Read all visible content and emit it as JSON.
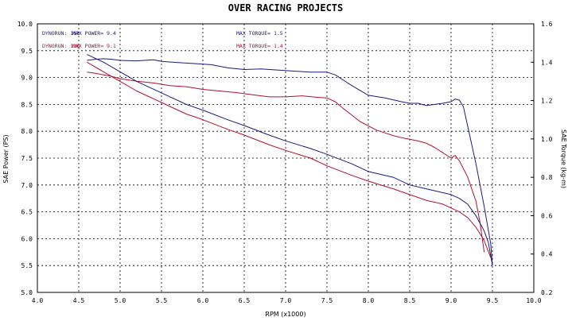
{
  "chart_data": {
    "type": "line",
    "title": "OVER RACING PROJECTS",
    "xlabel": "RPM (x1000)",
    "ylabel_left": "SAE Power (PS)",
    "ylabel_right": "SAE Torque (kg-m)",
    "xlim": [
      4.0,
      10.0
    ],
    "ylim_left": [
      5.0,
      10.0
    ],
    "ylim_right": [
      0.2,
      1.6
    ],
    "x_ticks": [
      "4.0",
      "4.5",
      "5.0",
      "5.5",
      "6.0",
      "6.5",
      "7.0",
      "7.5",
      "8.0",
      "8.5",
      "9.0",
      "9.5",
      "10.0"
    ],
    "y_ticks_left": [
      "5.0",
      "5.5",
      "6.0",
      "6.5",
      "7.0",
      "7.5",
      "8.0",
      "8.5",
      "9.0",
      "9.5",
      "10.0"
    ],
    "y_ticks_right": [
      "0.2",
      "0.4",
      "0.6",
      "0.8",
      "1.0",
      "1.2",
      "1.4",
      "1.6"
    ],
    "grid": true,
    "legend": [
      {
        "run": "DYNORUN: 161",
        "power": "MAX POWER= 9.4",
        "torque": "MAX TORQUE= 1.5",
        "color": "#1a1a80"
      },
      {
        "run": "DYNORUN: 126",
        "power": "MAX POWER= 9.1",
        "torque": "MAX TORQUE= 1.4",
        "color": "#b01030"
      }
    ],
    "series": [
      {
        "name": "DYNORUN: 161",
        "kind": "power",
        "axis": "left",
        "color": "#1a1a80",
        "x": [
          4.6,
          4.7,
          4.8,
          4.9,
          5.0,
          5.2,
          5.4,
          5.5,
          5.7,
          5.9,
          6.1,
          6.3,
          6.5,
          6.7,
          6.9,
          7.1,
          7.3,
          7.5,
          7.6,
          7.7,
          7.8,
          8.0,
          8.2,
          8.4,
          8.5,
          8.6,
          8.7,
          8.8,
          8.9,
          9.0,
          9.05,
          9.1,
          9.15,
          9.2,
          9.3,
          9.4,
          9.48,
          9.5
        ],
        "y": [
          9.32,
          9.34,
          9.35,
          9.34,
          9.32,
          9.31,
          9.33,
          9.3,
          9.28,
          9.26,
          9.24,
          9.18,
          9.15,
          9.16,
          9.14,
          9.12,
          9.1,
          9.1,
          9.05,
          8.95,
          8.85,
          8.67,
          8.62,
          8.55,
          8.52,
          8.52,
          8.48,
          8.5,
          8.52,
          8.55,
          8.6,
          8.58,
          8.45,
          8.1,
          7.4,
          6.6,
          5.9,
          5.5
        ]
      },
      {
        "name": "DYNORUN: 126",
        "kind": "power",
        "axis": "left",
        "color": "#b01030",
        "x": [
          4.6,
          4.7,
          4.8,
          4.9,
          5.0,
          5.2,
          5.4,
          5.6,
          5.8,
          6.0,
          6.2,
          6.4,
          6.6,
          6.8,
          7.0,
          7.2,
          7.4,
          7.5,
          7.6,
          7.7,
          7.8,
          7.9,
          8.0,
          8.1,
          8.2,
          8.3,
          8.4,
          8.5,
          8.6,
          8.7,
          8.8,
          8.9,
          9.0,
          9.05,
          9.1,
          9.2,
          9.3,
          9.35,
          9.4
        ],
        "y": [
          9.1,
          9.08,
          9.05,
          9.02,
          8.98,
          8.93,
          8.9,
          8.85,
          8.83,
          8.78,
          8.75,
          8.72,
          8.68,
          8.64,
          8.64,
          8.66,
          8.63,
          8.62,
          8.55,
          8.42,
          8.3,
          8.18,
          8.1,
          8.02,
          7.97,
          7.92,
          7.88,
          7.85,
          7.82,
          7.78,
          7.7,
          7.6,
          7.5,
          7.55,
          7.45,
          7.15,
          6.7,
          6.3,
          5.75
        ]
      },
      {
        "name": "DYNORUN: 161",
        "kind": "torque",
        "axis": "right",
        "color": "#1a1a80",
        "x": [
          4.6,
          4.8,
          5.0,
          5.2,
          5.5,
          5.8,
          6.0,
          6.3,
          6.5,
          6.8,
          7.0,
          7.3,
          7.5,
          7.8,
          8.0,
          8.3,
          8.5,
          8.7,
          8.9,
          9.0,
          9.1,
          9.2,
          9.3,
          9.4,
          9.45,
          9.5
        ],
        "y": [
          1.44,
          1.4,
          1.35,
          1.3,
          1.24,
          1.18,
          1.15,
          1.1,
          1.07,
          1.02,
          0.99,
          0.95,
          0.92,
          0.87,
          0.83,
          0.8,
          0.76,
          0.74,
          0.72,
          0.71,
          0.69,
          0.66,
          0.6,
          0.52,
          0.46,
          0.34
        ]
      },
      {
        "name": "DYNORUN: 126",
        "kind": "torque",
        "axis": "right",
        "color": "#b01030",
        "x": [
          4.6,
          4.8,
          5.0,
          5.2,
          5.5,
          5.8,
          6.0,
          6.3,
          6.5,
          6.8,
          7.0,
          7.3,
          7.5,
          7.8,
          8.0,
          8.3,
          8.5,
          8.7,
          8.9,
          9.0,
          9.1,
          9.2,
          9.3,
          9.4,
          9.48
        ],
        "y": [
          1.4,
          1.35,
          1.3,
          1.25,
          1.19,
          1.13,
          1.1,
          1.05,
          1.02,
          0.97,
          0.94,
          0.9,
          0.86,
          0.81,
          0.78,
          0.74,
          0.71,
          0.68,
          0.66,
          0.64,
          0.62,
          0.59,
          0.54,
          0.47,
          0.38
        ]
      }
    ]
  }
}
